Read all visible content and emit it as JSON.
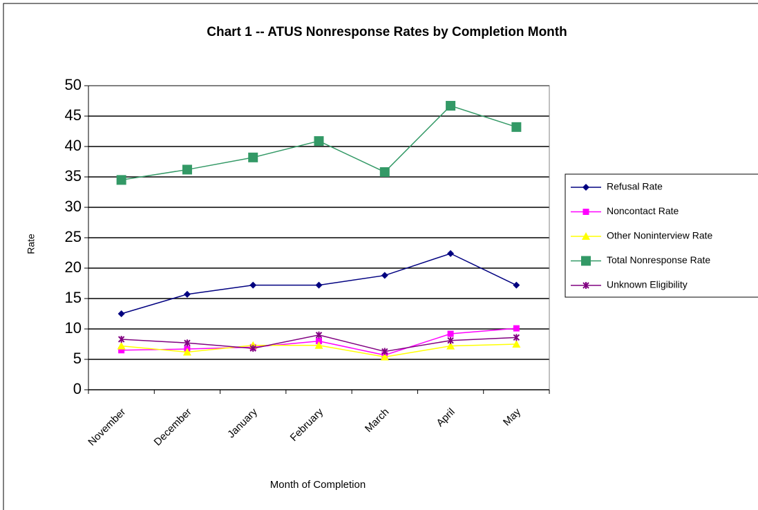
{
  "chart_data": {
    "type": "line",
    "title": "Chart 1 -- ATUS Nonresponse Rates by Completion Month",
    "x_label": "Month of Completion",
    "y_label": "Rate",
    "categories": [
      "November",
      "December",
      "January",
      "February",
      "March",
      "April",
      "May"
    ],
    "series": [
      {
        "name": "Refusal Rate",
        "color": "#000080",
        "marker": "diamond",
        "values": [
          12.5,
          15.7,
          17.2,
          17.2,
          18.8,
          22.4,
          17.2
        ]
      },
      {
        "name": "Noncontact Rate",
        "color": "#ff00ff",
        "marker": "square",
        "values": [
          6.5,
          6.7,
          7.0,
          8.0,
          5.7,
          9.2,
          10.1
        ]
      },
      {
        "name": "Other Noninterview Rate",
        "color": "#ffff00",
        "marker": "triangle",
        "values": [
          7.2,
          6.2,
          7.3,
          7.3,
          5.4,
          7.2,
          7.5
        ]
      },
      {
        "name": "Total Nonresponse Rate",
        "color": "#339966",
        "marker": "bigsquare",
        "values": [
          34.5,
          36.2,
          38.2,
          40.9,
          35.8,
          46.7,
          43.2
        ]
      },
      {
        "name": "Unknown Eligibility",
        "color": "#800080",
        "marker": "star",
        "values": [
          8.3,
          7.7,
          6.8,
          9.0,
          6.3,
          8.1,
          8.6
        ]
      }
    ],
    "ylim": [
      0,
      50
    ],
    "yticks": [
      0,
      5,
      10,
      15,
      20,
      25,
      30,
      35,
      40,
      45,
      50
    ],
    "grid": true,
    "legend": "right"
  }
}
